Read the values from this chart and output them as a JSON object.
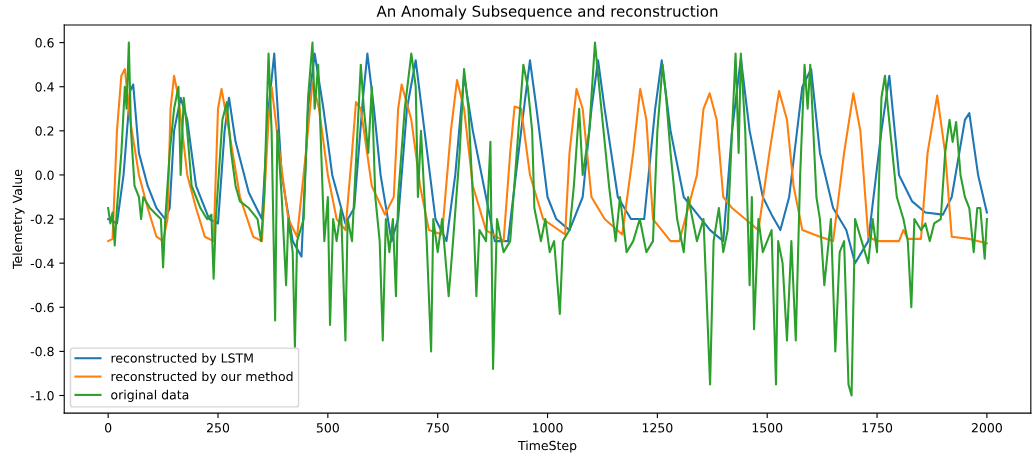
{
  "chart_data": {
    "type": "line",
    "title": "An Anomaly Subsequence and reconstruction",
    "xlabel": "TimeStep",
    "ylabel": "Telemetry Value",
    "xlim": [
      -100,
      2100
    ],
    "ylim": [
      -1.08,
      0.68
    ],
    "xticks": [
      0,
      250,
      500,
      750,
      1000,
      1250,
      1500,
      1750,
      2000
    ],
    "yticks": [
      {
        "value": -1,
        "label": "-1.0"
      },
      -0.8,
      -0.6,
      -0.4,
      -0.2,
      {
        "value": 0,
        "label": "0.0"
      },
      0.2,
      0.4,
      0.6
    ],
    "grid": false,
    "legend": "bottom left",
    "marker": "none",
    "line_style": "solid",
    "series": [
      {
        "name": "reconstructed by LSTM",
        "color": "#1f77b4",
        "x": [
          0,
          20,
          35,
          50,
          57,
          70,
          90,
          110,
          130,
          140,
          150,
          165,
          180,
          200,
          230,
          250,
          265,
          275,
          290,
          320,
          350,
          365,
          378,
          395,
          420,
          440,
          455,
          470,
          490,
          510,
          540,
          560,
          580,
          590,
          605,
          620,
          645,
          660,
          680,
          700,
          720,
          745,
          770,
          790,
          810,
          830,
          860,
          880,
          910,
          940,
          960,
          975,
          1000,
          1020,
          1050,
          1080,
          1100,
          1115,
          1130,
          1160,
          1190,
          1220,
          1245,
          1260,
          1280,
          1310,
          1350,
          1370,
          1400,
          1420,
          1440,
          1460,
          1490,
          1510,
          1530,
          1550,
          1580,
          1600,
          1620,
          1650,
          1680,
          1700,
          1730,
          1760,
          1778,
          1800,
          1830,
          1860,
          1900,
          1920,
          1950,
          1960,
          1980,
          2000
        ],
        "values": [
          -0.2,
          -0.22,
          0.0,
          0.38,
          0.41,
          0.1,
          -0.05,
          -0.15,
          -0.2,
          -0.15,
          0.2,
          0.35,
          0.25,
          -0.05,
          -0.2,
          -0.22,
          0.2,
          0.35,
          0.15,
          -0.08,
          -0.2,
          0.3,
          0.55,
          0.0,
          -0.3,
          -0.37,
          0.3,
          0.55,
          0.3,
          0.0,
          -0.22,
          -0.15,
          0.35,
          0.55,
          0.3,
          0.0,
          -0.3,
          -0.2,
          0.3,
          0.52,
          0.2,
          -0.2,
          -0.3,
          0.0,
          0.45,
          0.2,
          -0.1,
          -0.3,
          -0.3,
          0.2,
          0.52,
          0.3,
          -0.1,
          -0.2,
          -0.25,
          -0.1,
          0.3,
          0.52,
          0.3,
          -0.1,
          -0.2,
          -0.2,
          0.3,
          0.52,
          0.2,
          -0.1,
          -0.2,
          -0.25,
          -0.3,
          0.2,
          0.53,
          0.2,
          -0.1,
          -0.18,
          -0.25,
          -0.1,
          0.4,
          0.48,
          0.1,
          -0.15,
          -0.25,
          -0.4,
          -0.3,
          0.2,
          0.45,
          0.0,
          -0.12,
          -0.17,
          -0.18,
          -0.1,
          0.25,
          0.28,
          0.0,
          -0.17
        ]
      },
      {
        "name": "reconstructed by our method",
        "color": "#ff7f0e",
        "x": [
          0,
          10,
          20,
          30,
          38,
          50,
          70,
          90,
          110,
          125,
          135,
          142,
          150,
          160,
          180,
          200,
          220,
          240,
          250,
          258,
          275,
          300,
          330,
          350,
          365,
          372,
          390,
          410,
          430,
          450,
          465,
          480,
          500,
          520,
          540,
          555,
          564,
          575,
          600,
          630,
          650,
          660,
          668,
          690,
          710,
          730,
          760,
          780,
          794,
          810,
          830,
          860,
          900,
          915,
          925,
          940,
          960,
          990,
          1040,
          1050,
          1066,
          1080,
          1100,
          1130,
          1170,
          1195,
          1211,
          1225,
          1240,
          1260,
          1280,
          1300,
          1340,
          1355,
          1369,
          1385,
          1400,
          1420,
          1450,
          1480,
          1505,
          1527,
          1545,
          1560,
          1580,
          1620,
          1650,
          1675,
          1696,
          1712,
          1730,
          1750,
          1800,
          1810,
          1820,
          1850,
          1865,
          1887,
          1905,
          1920,
          1960,
          2000
        ],
        "values": [
          -0.3,
          -0.29,
          0.2,
          0.45,
          0.48,
          0.25,
          0.0,
          -0.15,
          -0.28,
          -0.3,
          -0.2,
          0.3,
          0.45,
          0.35,
          0.0,
          -0.15,
          -0.28,
          -0.3,
          0.3,
          0.39,
          0.2,
          -0.1,
          -0.28,
          -0.3,
          0.25,
          0.4,
          0.1,
          -0.2,
          -0.28,
          0.1,
          0.42,
          0.3,
          0.0,
          -0.2,
          -0.25,
          0.1,
          0.33,
          0.3,
          -0.05,
          -0.18,
          -0.1,
          0.3,
          0.41,
          0.25,
          -0.05,
          -0.25,
          -0.27,
          0.2,
          0.43,
          0.3,
          -0.05,
          -0.25,
          -0.3,
          0.1,
          0.31,
          0.3,
          0.0,
          -0.2,
          -0.27,
          0.1,
          0.39,
          0.3,
          -0.1,
          -0.2,
          -0.27,
          0.1,
          0.39,
          0.25,
          -0.2,
          -0.25,
          -0.3,
          -0.3,
          0.0,
          0.3,
          0.37,
          0.25,
          -0.1,
          -0.15,
          -0.2,
          -0.25,
          0.1,
          0.38,
          0.25,
          -0.05,
          -0.25,
          -0.28,
          -0.3,
          0.1,
          0.37,
          0.2,
          -0.28,
          -0.3,
          -0.3,
          -0.25,
          -0.29,
          -0.29,
          0.1,
          0.36,
          0.1,
          -0.28,
          -0.29,
          -0.31
        ]
      },
      {
        "name": "original data",
        "color": "#2ca02c",
        "x": [
          0,
          5,
          10,
          15,
          20,
          30,
          38,
          42,
          47,
          52,
          60,
          70,
          75,
          80,
          95,
          110,
          120,
          125,
          130,
          140,
          150,
          160,
          165,
          172,
          180,
          190,
          200,
          210,
          225,
          235,
          240,
          245,
          260,
          270,
          280,
          290,
          300,
          320,
          340,
          348,
          355,
          365,
          372,
          380,
          385,
          395,
          405,
          410,
          420,
          425,
          430,
          445,
          455,
          465,
          470,
          478,
          485,
          492,
          500,
          505,
          512,
          520,
          530,
          540,
          545,
          555,
          565,
          575,
          582,
          592,
          600,
          608,
          618,
          625,
          632,
          640,
          648,
          655,
          660,
          675,
          690,
          700,
          705,
          712,
          725,
          735,
          740,
          750,
          760,
          775,
          785,
          800,
          810,
          820,
          830,
          838,
          845,
          860,
          870,
          876,
          885,
          900,
          915,
          930,
          945,
          955,
          965,
          970,
          985,
          995,
          1005,
          1015,
          1028,
          1035,
          1050,
          1060,
          1072,
          1080,
          1095,
          1108,
          1120,
          1130,
          1140,
          1155,
          1165,
          1180,
          1195,
          1210,
          1225,
          1240,
          1250,
          1262,
          1270,
          1280,
          1295,
          1310,
          1320,
          1340,
          1355,
          1370,
          1378,
          1390,
          1400,
          1410,
          1420,
          1428,
          1435,
          1440,
          1450,
          1460,
          1465,
          1470,
          1480,
          1490,
          1500,
          1510,
          1520,
          1525,
          1535,
          1545,
          1555,
          1565,
          1575,
          1585,
          1592,
          1598,
          1605,
          1612,
          1620,
          1630,
          1645,
          1655,
          1665,
          1675,
          1685,
          1692,
          1700,
          1715,
          1730,
          1740,
          1750,
          1760,
          1768,
          1775,
          1785,
          1795,
          1810,
          1820,
          1828,
          1835,
          1850,
          1860,
          1870,
          1880,
          1895,
          1905,
          1915,
          1922,
          1930,
          1940,
          1950,
          1960,
          1970,
          1978,
          1985,
          1995,
          2000
        ],
        "values": [
          -0.15,
          -0.22,
          -0.17,
          -0.32,
          -0.15,
          0.1,
          0.4,
          0.3,
          0.6,
          0.2,
          -0.05,
          -0.1,
          -0.2,
          -0.1,
          -0.15,
          -0.18,
          -0.2,
          -0.42,
          -0.2,
          0.1,
          0.3,
          0.4,
          0.0,
          0.35,
          0.2,
          -0.05,
          -0.1,
          -0.15,
          -0.2,
          -0.18,
          -0.47,
          -0.2,
          0.25,
          0.33,
          0.1,
          -0.05,
          -0.12,
          -0.15,
          -0.2,
          -0.3,
          -0.1,
          0.55,
          0.2,
          -0.66,
          0.2,
          -0.1,
          -0.5,
          -0.2,
          -0.35,
          -0.78,
          -0.3,
          -0.2,
          0.35,
          0.6,
          0.3,
          0.5,
          0.1,
          -0.3,
          -0.1,
          -0.68,
          -0.2,
          -0.3,
          -0.15,
          -0.75,
          -0.2,
          -0.3,
          0.1,
          0.5,
          0.3,
          0.1,
          0.4,
          -0.1,
          -0.3,
          -0.75,
          -0.2,
          -0.35,
          -0.2,
          -0.55,
          -0.1,
          0.3,
          0.55,
          0.4,
          -0.1,
          0.2,
          -0.3,
          -0.8,
          -0.2,
          -0.35,
          -0.2,
          -0.55,
          -0.3,
          0.1,
          0.48,
          0.3,
          -0.1,
          -0.55,
          -0.25,
          -0.3,
          0.15,
          -0.88,
          -0.2,
          -0.35,
          -0.3,
          0.1,
          0.5,
          0.4,
          0.2,
          -0.15,
          -0.3,
          -0.2,
          -0.35,
          -0.3,
          -0.63,
          -0.3,
          -0.25,
          -0.05,
          0.3,
          0.0,
          0.2,
          0.6,
          0.35,
          0.15,
          -0.05,
          -0.3,
          -0.1,
          -0.35,
          -0.3,
          -0.2,
          -0.35,
          -0.3,
          0.2,
          0.5,
          0.35,
          0.1,
          -0.2,
          -0.35,
          -0.1,
          -0.3,
          -0.2,
          -0.95,
          -0.3,
          -0.15,
          -0.35,
          -0.25,
          0.2,
          0.55,
          0.1,
          0.55,
          0.2,
          -0.5,
          -0.1,
          -0.7,
          -0.2,
          -0.35,
          -0.3,
          -0.25,
          -0.95,
          -0.3,
          -0.4,
          -0.75,
          -0.3,
          -0.75,
          0.0,
          0.5,
          0.3,
          0.5,
          0.2,
          -0.1,
          -0.2,
          -0.5,
          -0.2,
          -0.8,
          -0.35,
          -0.3,
          -0.95,
          -1.0,
          -0.2,
          -0.3,
          -0.4,
          -0.2,
          -0.35,
          0.35,
          0.45,
          0.3,
          0.1,
          -0.1,
          -0.2,
          -0.3,
          -0.6,
          -0.2,
          -0.25,
          -0.22,
          -0.3,
          -0.22,
          -0.2,
          0.1,
          0.25,
          0.15,
          0.24,
          0.0,
          -0.1,
          -0.15,
          -0.35,
          -0.15,
          -0.15,
          -0.38,
          -0.2
        ]
      }
    ]
  }
}
